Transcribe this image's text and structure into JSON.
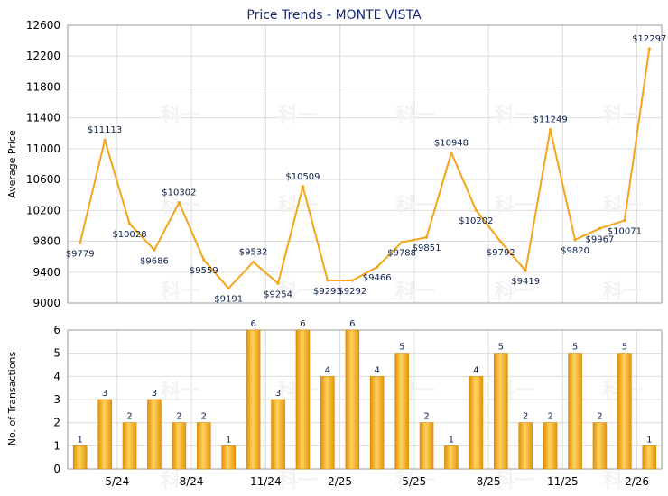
{
  "chart_data": [
    {
      "type": "line",
      "title": "Price Trends - MONTE VISTA",
      "ylabel": "Average Price",
      "xlabel": "",
      "ylim": [
        9000,
        12600
      ],
      "yticks": [
        9000,
        9400,
        9800,
        10200,
        10600,
        11000,
        11400,
        11800,
        12200,
        12600
      ],
      "x_tick_labels": [
        "5/24",
        "8/24",
        "11/24",
        "2/25",
        "5/25",
        "8/25",
        "11/25",
        "2/26"
      ],
      "x_tick_positions": [
        2,
        5,
        8,
        11,
        14,
        17,
        20,
        23
      ],
      "values": [
        9779,
        11113,
        10028,
        9686,
        10302,
        9559,
        9191,
        9532,
        9254,
        10509,
        9293,
        9292,
        9466,
        9788,
        9851,
        10948,
        10202,
        9792,
        9419,
        11249,
        9820,
        9967,
        10071,
        12297
      ],
      "labels": [
        "$9779",
        "$11113",
        "$10028",
        "$9686",
        "$10302",
        "$9559",
        "$9191",
        "$9532",
        "$9254",
        "$10509",
        "$9293",
        "$9292",
        "$9466",
        "$9788",
        "$9851",
        "$10948",
        "$10202",
        "$9792",
        "$9419",
        "$11249",
        "$9820",
        "$9967",
        "$10071",
        "$12297"
      ],
      "color": "#f5a41a"
    },
    {
      "type": "bar",
      "ylabel": "No. of Transactions",
      "xlabel": "",
      "ylim": [
        0,
        6
      ],
      "yticks": [
        0,
        1,
        2,
        3,
        4,
        5,
        6
      ],
      "x_tick_labels": [
        "5/24",
        "8/24",
        "11/24",
        "2/25",
        "5/25",
        "8/25",
        "11/25",
        "2/26"
      ],
      "x_tick_positions": [
        2,
        5,
        8,
        11,
        14,
        17,
        20,
        23
      ],
      "values": [
        1,
        3,
        2,
        3,
        2,
        2,
        1,
        6,
        3,
        6,
        4,
        6,
        4,
        5,
        2,
        1,
        4,
        5,
        2,
        2,
        5,
        2,
        5,
        1
      ],
      "labels": [
        "1",
        "3",
        "2",
        "3",
        "2",
        "2",
        "1",
        "6",
        "3",
        "6",
        "4",
        "6",
        "4",
        "5",
        "2",
        "1",
        "4",
        "5",
        "2",
        "2",
        "5",
        "2",
        "5",
        "1"
      ],
      "color": "#f5a41a"
    }
  ]
}
